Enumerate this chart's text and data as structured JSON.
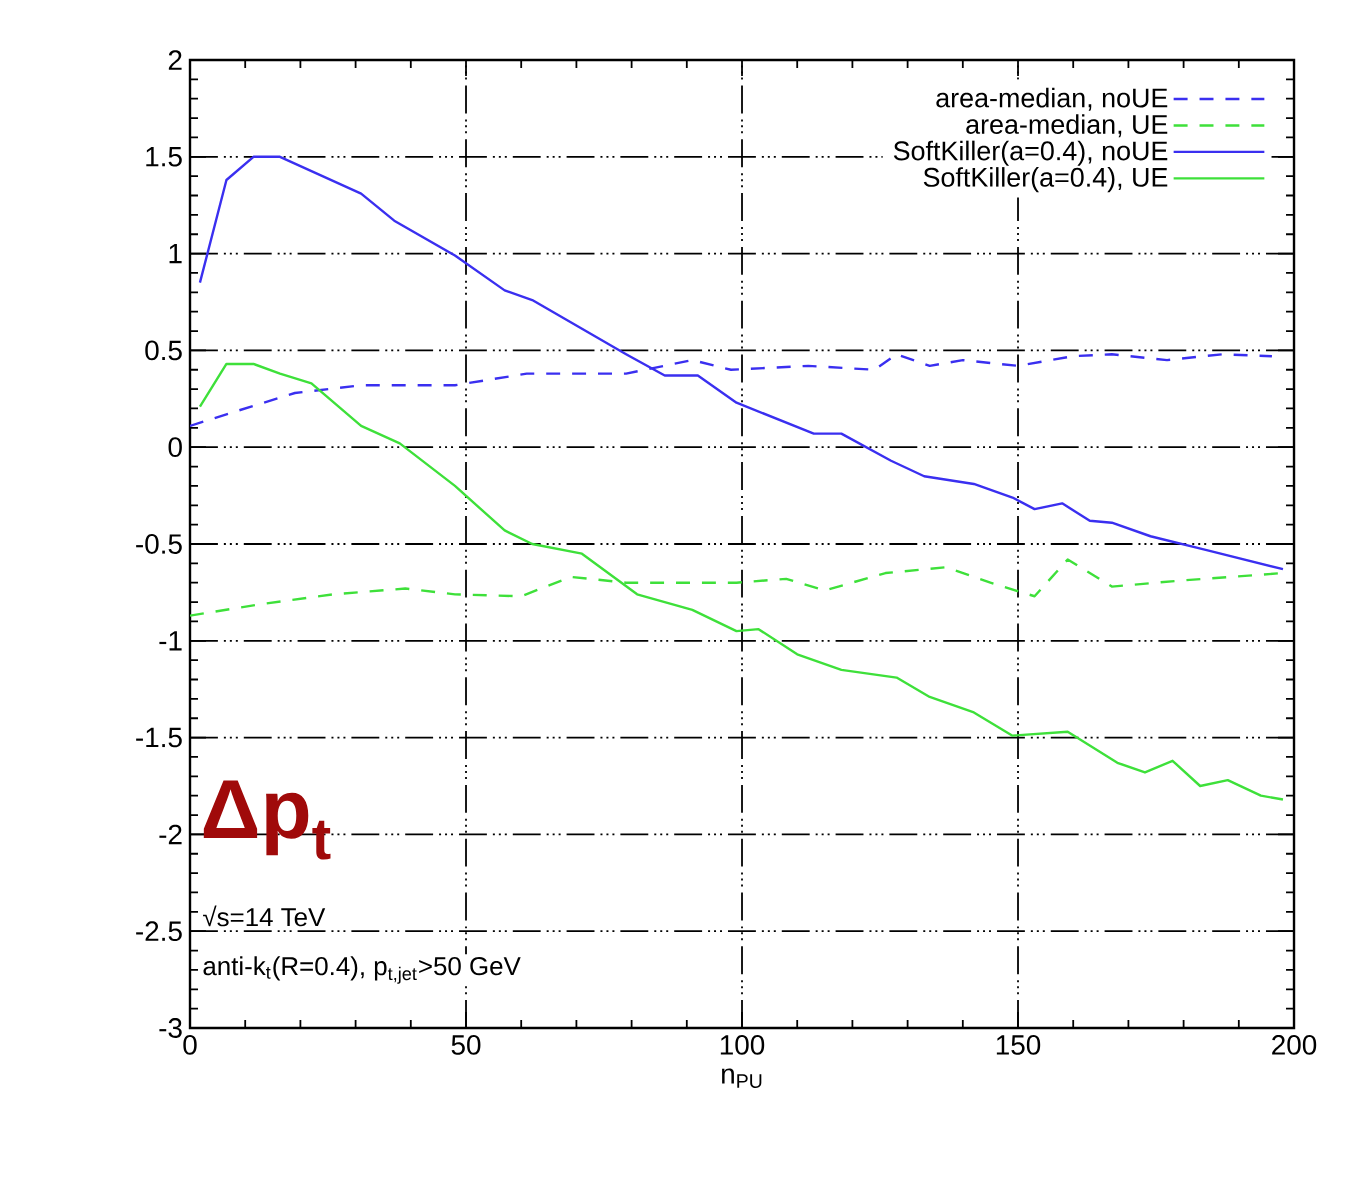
{
  "chart_data": {
    "type": "line",
    "xlabel": "n$_{PU}$",
    "xlim": [
      0,
      200
    ],
    "xticks": [
      0,
      50,
      100,
      150,
      200
    ],
    "ylim": [
      -3,
      2
    ],
    "yticks": [
      -3,
      -2.5,
      -2,
      -1.5,
      -1,
      -0.5,
      0,
      0.5,
      1,
      1.5,
      2
    ],
    "grid": true,
    "legend": "top right",
    "series": [
      {
        "name": "area-median, noUE",
        "color": "#3a2ff0",
        "line_style": "dashed",
        "x": [
          0,
          6.6,
          19,
          31,
          48,
          61,
          79,
          91,
          98,
          112,
          124,
          128,
          134,
          140,
          150,
          160,
          167,
          177,
          187,
          196
        ],
        "values": [
          0.11,
          0.17,
          0.28,
          0.32,
          0.32,
          0.38,
          0.38,
          0.45,
          0.4,
          0.42,
          0.4,
          0.48,
          0.42,
          0.45,
          0.42,
          0.47,
          0.48,
          0.45,
          0.48,
          0.47
        ]
      },
      {
        "name": "area-median, UE",
        "color": "#3ee03a",
        "line_style": "dashed",
        "x": [
          0,
          13,
          26,
          39,
          48,
          60,
          69,
          79,
          91,
          99,
          108,
          115,
          126,
          137,
          145,
          153,
          159,
          167,
          179,
          198
        ],
        "values": [
          -0.87,
          -0.81,
          -0.76,
          -0.73,
          -0.76,
          -0.77,
          -0.67,
          -0.7,
          -0.7,
          -0.7,
          -0.68,
          -0.74,
          -0.65,
          -0.62,
          -0.7,
          -0.77,
          -0.58,
          -0.72,
          -0.69,
          -0.65
        ]
      },
      {
        "name": "SoftKiller(a=0.4), noUE",
        "color": "#3a2ff0",
        "line_style": "solid",
        "x": [
          1.8,
          6.6,
          11.5,
          16.3,
          31,
          37,
          48,
          57,
          62,
          79,
          86,
          92,
          99,
          113,
          118,
          127,
          133,
          142,
          149,
          153,
          158,
          163,
          167,
          174,
          184,
          198
        ],
        "values": [
          0.85,
          1.38,
          1.5,
          1.5,
          1.31,
          1.17,
          0.99,
          0.81,
          0.76,
          0.48,
          0.37,
          0.37,
          0.23,
          0.07,
          0.07,
          -0.07,
          -0.15,
          -0.19,
          -0.26,
          -0.32,
          -0.29,
          -0.38,
          -0.39,
          -0.46,
          -0.53,
          -0.63
        ]
      },
      {
        "name": "SoftKiller(a=0.4), UE",
        "color": "#3ee03a",
        "line_style": "solid",
        "x": [
          1.8,
          6.6,
          11.5,
          16.3,
          22,
          31,
          38,
          48,
          57,
          62,
          71,
          81,
          91,
          99,
          103,
          110,
          118,
          128,
          134,
          142,
          149,
          159,
          168,
          173,
          178,
          183,
          188,
          194,
          198
        ],
        "values": [
          0.21,
          0.43,
          0.43,
          0.38,
          0.33,
          0.11,
          0.02,
          -0.2,
          -0.43,
          -0.5,
          -0.55,
          -0.76,
          -0.84,
          -0.95,
          -0.94,
          -1.07,
          -1.15,
          -1.19,
          -1.29,
          -1.37,
          -1.49,
          -1.47,
          -1.63,
          -1.68,
          -1.62,
          -1.75,
          -1.72,
          -1.8,
          -1.82
        ]
      }
    ],
    "annotations": [
      "Δp$_{t}$",
      "√s=14 TeV",
      "anti-k$_{t}$(R=0.4), p$_{t,jet}$>50 GeV"
    ]
  }
}
